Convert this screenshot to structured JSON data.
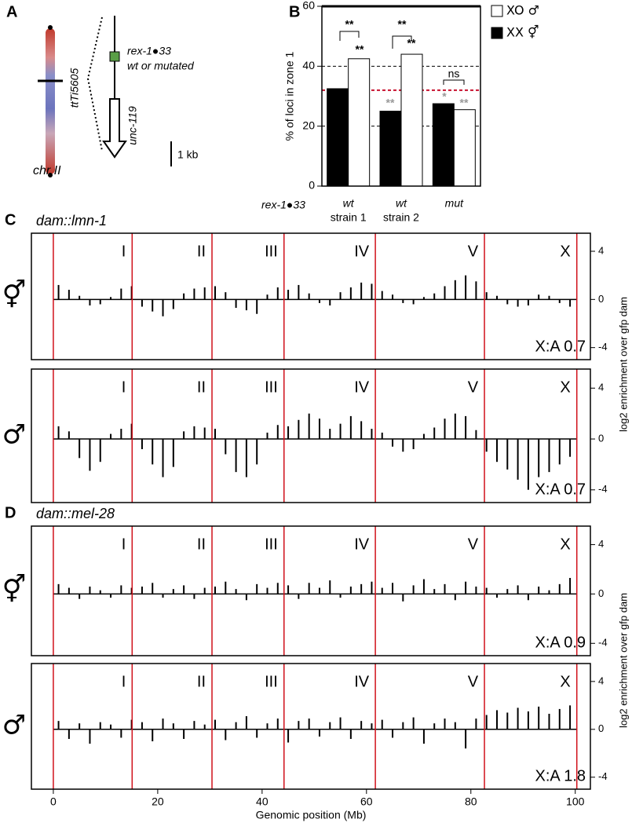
{
  "panel_a": {
    "label": "A",
    "insertion": "ttTi5605",
    "chromosome": "chr II",
    "site": "rex-1●33",
    "site_variant": "wt or mutated",
    "gene": "unc-119",
    "scale": "1 kb"
  },
  "chart_data": [
    {
      "type": "bar",
      "panel_label": "B",
      "y_label": "% of loci in zone 1",
      "row_label": "rex-1●33",
      "categories": [
        "wt",
        "wt",
        "mut"
      ],
      "subcategories": [
        "strain 1",
        "strain 2",
        null
      ],
      "series": [
        {
          "name": "XX ⚥",
          "color": "#000000",
          "values": [
            32.5,
            25,
            27.5
          ]
        },
        {
          "name": "XO ♂",
          "color": "#ffffff",
          "values": [
            42.5,
            44,
            25.5
          ]
        }
      ],
      "ylim": [
        0,
        60
      ],
      "yticks": [
        0,
        20,
        40,
        60
      ],
      "reference_lines": [
        {
          "value": 40,
          "color": "#000000"
        },
        {
          "value": 32,
          "color": "#c8102e"
        },
        {
          "value": 20,
          "color": "#000000"
        }
      ],
      "annotations": [
        "**",
        "**",
        "**",
        "**",
        "ns",
        "**",
        "*",
        "**"
      ]
    },
    {
      "type": "track",
      "panel_label": "C",
      "title": "dam::lmn-1",
      "y_label": "log2 enrichment over gfp dam",
      "sex": "⚥",
      "note": "X:A 0.7",
      "chromosomes": [
        "I",
        "II",
        "III",
        "IV",
        "V",
        "X"
      ],
      "boundaries": [
        0,
        15.1,
        30.4,
        44.2,
        61.7,
        82.6,
        100.3
      ],
      "xlim": [
        -4.2,
        102.9
      ],
      "ylim": [
        -5,
        5.5
      ],
      "yticks": [
        -4,
        0,
        4
      ],
      "color": "#000000",
      "x": [
        1,
        3,
        5,
        7,
        9,
        11,
        13,
        15,
        17,
        19,
        21,
        23,
        25,
        27,
        29,
        31,
        33,
        35,
        37,
        39,
        41,
        43,
        45,
        47,
        49,
        51,
        53,
        55,
        57,
        59,
        61,
        63,
        65,
        67,
        69,
        71,
        73,
        75,
        77,
        79,
        81,
        83,
        85,
        87,
        89,
        91,
        93,
        95,
        97,
        99
      ],
      "values": [
        1.2,
        0.8,
        0.3,
        -0.5,
        -0.4,
        0.2,
        0.9,
        1.1,
        -0.6,
        -1.0,
        -1.4,
        -0.8,
        0.5,
        0.9,
        1.0,
        1.1,
        0.6,
        -0.7,
        -0.9,
        -1.2,
        0.4,
        1.0,
        0.8,
        1.2,
        0.5,
        -0.3,
        -0.5,
        0.6,
        1.0,
        1.4,
        1.3,
        0.7,
        0.4,
        -0.3,
        -0.4,
        0.2,
        0.5,
        1.1,
        1.6,
        2.0,
        1.5,
        0.6,
        0.3,
        -0.4,
        -0.6,
        -0.5,
        0.4,
        0.3,
        -0.3,
        -0.6
      ]
    },
    {
      "type": "track",
      "sex": "♂",
      "note": "X:A 0.7",
      "chromosomes": [
        "I",
        "II",
        "III",
        "IV",
        "V",
        "X"
      ],
      "boundaries": [
        0,
        15.1,
        30.4,
        44.2,
        61.7,
        82.6,
        100.3
      ],
      "xlim": [
        -4.2,
        102.9
      ],
      "ylim": [
        -5,
        5.5
      ],
      "yticks": [
        -4,
        0,
        4
      ],
      "color": "#000000",
      "x": [
        1,
        3,
        5,
        7,
        9,
        11,
        13,
        15,
        17,
        19,
        21,
        23,
        25,
        27,
        29,
        31,
        33,
        35,
        37,
        39,
        41,
        43,
        45,
        47,
        49,
        51,
        53,
        55,
        57,
        59,
        61,
        63,
        65,
        67,
        69,
        71,
        73,
        75,
        77,
        79,
        81,
        83,
        85,
        87,
        89,
        91,
        93,
        95,
        97,
        99
      ],
      "values": [
        1.0,
        0.6,
        -1.5,
        -2.5,
        -1.8,
        0.4,
        0.8,
        1.2,
        -0.8,
        -2.0,
        -3.0,
        -2.2,
        0.6,
        1.0,
        0.9,
        0.8,
        -1.2,
        -2.6,
        -3.0,
        -2.0,
        0.5,
        1.1,
        1.0,
        1.5,
        2.0,
        1.6,
        0.8,
        1.2,
        1.8,
        1.4,
        0.8,
        0.5,
        -0.6,
        -1.0,
        -0.8,
        0.4,
        0.9,
        1.6,
        2.0,
        1.8,
        0.7,
        -1.0,
        -1.8,
        -2.4,
        -3.2,
        -4.0,
        -3.0,
        -2.6,
        -2.0,
        -1.4
      ]
    },
    {
      "type": "track",
      "panel_label": "D",
      "title": "dam::mel-28",
      "y_label": "log2 enrichment over gfp dam",
      "sex": "⚥",
      "note": "X:A 0.9",
      "chromosomes": [
        "I",
        "II",
        "III",
        "IV",
        "V",
        "X"
      ],
      "boundaries": [
        0,
        15.1,
        30.4,
        44.2,
        61.7,
        82.6,
        100.3
      ],
      "xlim": [
        -4.2,
        102.9
      ],
      "ylim": [
        -5,
        5.5
      ],
      "yticks": [
        -4,
        0,
        4
      ],
      "color": "#000000",
      "x": [
        1,
        3,
        5,
        7,
        9,
        11,
        13,
        15,
        17,
        19,
        21,
        23,
        25,
        27,
        29,
        31,
        33,
        35,
        37,
        39,
        41,
        43,
        45,
        47,
        49,
        51,
        53,
        55,
        57,
        59,
        61,
        63,
        65,
        67,
        69,
        71,
        73,
        75,
        77,
        79,
        81,
        83,
        85,
        87,
        89,
        91,
        93,
        95,
        97,
        99
      ],
      "values": [
        0.8,
        0.5,
        -0.4,
        0.6,
        0.3,
        -0.3,
        0.7,
        0.5,
        0.6,
        0.9,
        -0.3,
        0.4,
        0.7,
        -0.4,
        0.5,
        0.6,
        1.0,
        0.4,
        -0.5,
        0.8,
        0.5,
        0.9,
        0.7,
        -0.4,
        0.9,
        0.5,
        1.1,
        -0.3,
        0.6,
        0.8,
        1.0,
        0.5,
        0.9,
        -0.6,
        0.7,
        1.2,
        0.4,
        0.8,
        -0.5,
        1.0,
        0.6,
        0.5,
        -0.3,
        0.4,
        0.7,
        -0.5,
        0.6,
        0.3,
        0.8,
        1.3
      ]
    },
    {
      "type": "track",
      "sex": "♂",
      "note": "X:A 1.8",
      "x_label": "Genomic position (Mb)",
      "xticks": [
        0,
        20,
        40,
        60,
        80,
        100
      ],
      "chromosomes": [
        "I",
        "II",
        "III",
        "IV",
        "V",
        "X"
      ],
      "boundaries": [
        0,
        15.1,
        30.4,
        44.2,
        61.7,
        82.6,
        100.3
      ],
      "xlim": [
        -4.2,
        102.9
      ],
      "ylim": [
        -5,
        5.5
      ],
      "yticks": [
        -4,
        0,
        4
      ],
      "color": "#000000",
      "x": [
        1,
        3,
        5,
        7,
        9,
        11,
        13,
        15,
        17,
        19,
        21,
        23,
        25,
        27,
        29,
        31,
        33,
        35,
        37,
        39,
        41,
        43,
        45,
        47,
        49,
        51,
        53,
        55,
        57,
        59,
        61,
        63,
        65,
        67,
        69,
        71,
        73,
        75,
        77,
        79,
        81,
        83,
        85,
        87,
        89,
        91,
        93,
        95,
        97,
        99
      ],
      "values": [
        0.7,
        -0.8,
        0.5,
        -1.2,
        0.6,
        0.4,
        -0.7,
        0.8,
        0.6,
        -1.0,
        0.9,
        0.5,
        -0.8,
        0.7,
        0.4,
        0.8,
        -0.9,
        0.6,
        1.1,
        -0.7,
        0.5,
        0.9,
        -1.1,
        0.7,
        0.9,
        -0.6,
        0.6,
        1.0,
        -0.8,
        0.7,
        0.5,
        0.8,
        -0.7,
        0.6,
        1.0,
        -1.2,
        0.5,
        0.9,
        0.6,
        -1.6,
        0.9,
        1.2,
        1.6,
        1.4,
        1.8,
        1.5,
        1.9,
        1.3,
        1.7,
        2.0
      ]
    }
  ]
}
